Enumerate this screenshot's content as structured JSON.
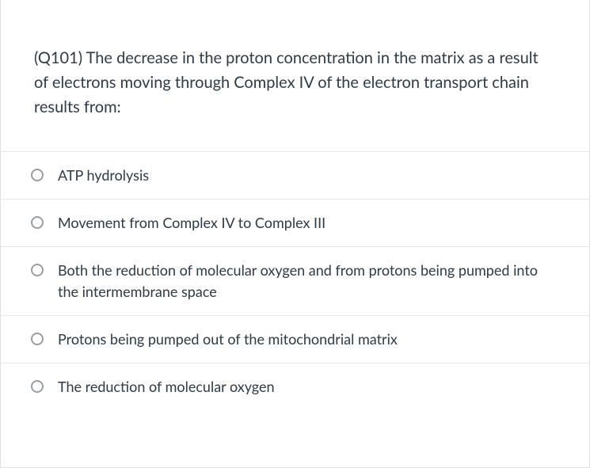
{
  "question": {
    "text": "(Q101) The decrease in the proton concentration in the matrix as a result of electrons moving through Complex IV of the electron transport chain results from:",
    "text_color": "#2d3b45",
    "fontsize": 20
  },
  "options": [
    {
      "label": "ATP hydrolysis"
    },
    {
      "label": "Movement from Complex IV to Complex III"
    },
    {
      "label": "Both the reduction of molecular oxygen and from protons being pumped into the intermembrane space"
    },
    {
      "label": "Protons being pumped out of the mitochondrial matrix"
    },
    {
      "label": "The reduction of molecular oxygen"
    }
  ],
  "styling": {
    "card_background": "#ffffff",
    "card_border_color": "#e0e0e0",
    "option_divider_color": "#e8e8e8",
    "radio_border_color": "#999ea3",
    "option_text_color": "#2d3b45",
    "option_fontsize": 18
  }
}
